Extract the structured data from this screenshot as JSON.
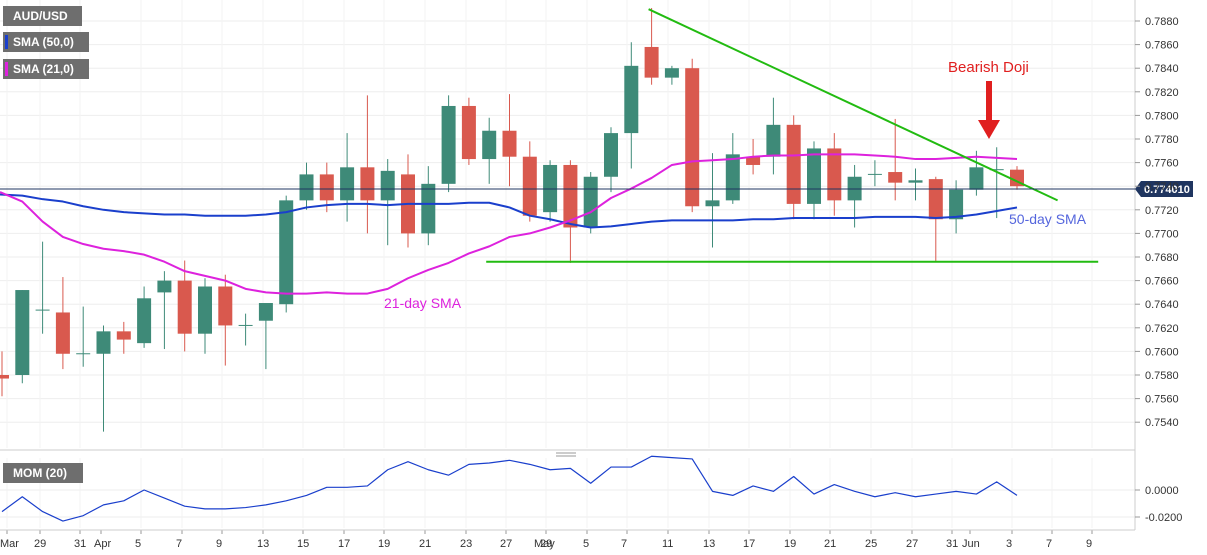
{
  "legends": {
    "symbol": "AUD/USD",
    "sma50": "SMA (50,0)",
    "sma21": "SMA (21,0)",
    "mom": "MOM (20)"
  },
  "colors": {
    "bull": "#3e8a78",
    "bear": "#d9594e",
    "sma50": "#1a3fcc",
    "sma21": "#dd22dd",
    "trend": "#22bb11",
    "arrow": "#e01f1f",
    "mom": "#1a3fcc"
  },
  "annotations": {
    "bearish_doji": "Bearish Doji",
    "sma50_label": "50-day SMA",
    "sma21_label": "21-day SMA"
  },
  "current_price": "0.774010",
  "chart_data": [
    {
      "type": "candlestick",
      "title": "AUD/USD",
      "x_tick_labels": [
        "Mar",
        "29",
        "31",
        "Apr",
        "5",
        "7",
        "9",
        "13",
        "15",
        "17",
        "19",
        "21",
        "23",
        "27",
        "29",
        "May",
        "5",
        "7",
        "11",
        "13",
        "17",
        "19",
        "21",
        "25",
        "27",
        "31",
        "Jun",
        "3",
        "7",
        "9"
      ],
      "y_ticks": [
        "0.7540",
        "0.7560",
        "0.7580",
        "0.7600",
        "0.7620",
        "0.7640",
        "0.7660",
        "0.7680",
        "0.7700",
        "0.7720",
        "0.7740",
        "0.7760",
        "0.7780",
        "0.7800",
        "0.7820",
        "0.7840",
        "0.7860",
        "0.7880"
      ],
      "ylim": [
        0.7524,
        0.7895
      ],
      "grid": true,
      "candles": [
        {
          "date": "Mar 26",
          "o": 0.758,
          "h": 0.76,
          "l": 0.7562,
          "c": 0.7577
        },
        {
          "date": "Mar 29",
          "o": 0.758,
          "h": 0.7652,
          "l": 0.7573,
          "c": 0.7652
        },
        {
          "date": "Mar 30",
          "o": 0.7635,
          "h": 0.7693,
          "l": 0.7615,
          "c": 0.7635
        },
        {
          "date": "Mar 31",
          "o": 0.7633,
          "h": 0.7663,
          "l": 0.7585,
          "c": 0.7598
        },
        {
          "date": "Apr 1",
          "o": 0.7598,
          "h": 0.7638,
          "l": 0.7587,
          "c": 0.7598
        },
        {
          "date": "Apr 2",
          "o": 0.7598,
          "h": 0.7622,
          "l": 0.7532,
          "c": 0.7617
        },
        {
          "date": "Apr 5",
          "o": 0.7617,
          "h": 0.7625,
          "l": 0.7598,
          "c": 0.761
        },
        {
          "date": "Apr 6",
          "o": 0.7607,
          "h": 0.7655,
          "l": 0.7603,
          "c": 0.7645
        },
        {
          "date": "Apr 7",
          "o": 0.765,
          "h": 0.7668,
          "l": 0.7602,
          "c": 0.766
        },
        {
          "date": "Apr 8",
          "o": 0.766,
          "h": 0.7677,
          "l": 0.76,
          "c": 0.7615
        },
        {
          "date": "Apr 9",
          "o": 0.7615,
          "h": 0.7662,
          "l": 0.7598,
          "c": 0.7655
        },
        {
          "date": "Apr 12",
          "o": 0.7655,
          "h": 0.7665,
          "l": 0.7588,
          "c": 0.7622
        },
        {
          "date": "Apr 13",
          "o": 0.7622,
          "h": 0.7632,
          "l": 0.7605,
          "c": 0.7622
        },
        {
          "date": "Apr 14",
          "o": 0.7626,
          "h": 0.764,
          "l": 0.7585,
          "c": 0.7641
        },
        {
          "date": "Apr 15",
          "o": 0.764,
          "h": 0.7732,
          "l": 0.7633,
          "c": 0.7728
        },
        {
          "date": "Apr 16",
          "o": 0.7728,
          "h": 0.776,
          "l": 0.772,
          "c": 0.775
        },
        {
          "date": "Apr 19",
          "o": 0.775,
          "h": 0.776,
          "l": 0.7718,
          "c": 0.7728
        },
        {
          "date": "Apr 20",
          "o": 0.7728,
          "h": 0.7785,
          "l": 0.771,
          "c": 0.7756
        },
        {
          "date": "Apr 21",
          "o": 0.7756,
          "h": 0.7817,
          "l": 0.77,
          "c": 0.7728
        },
        {
          "date": "Apr 22",
          "o": 0.7728,
          "h": 0.7763,
          "l": 0.769,
          "c": 0.7753
        },
        {
          "date": "Apr 23",
          "o": 0.775,
          "h": 0.7767,
          "l": 0.7688,
          "c": 0.77
        },
        {
          "date": "Apr 26",
          "o": 0.77,
          "h": 0.7757,
          "l": 0.769,
          "c": 0.7742
        },
        {
          "date": "Apr 27",
          "o": 0.7742,
          "h": 0.7817,
          "l": 0.7735,
          "c": 0.7808
        },
        {
          "date": "Apr 28",
          "o": 0.7808,
          "h": 0.7815,
          "l": 0.7758,
          "c": 0.7763
        },
        {
          "date": "Apr 29",
          "o": 0.7763,
          "h": 0.7798,
          "l": 0.7742,
          "c": 0.7787
        },
        {
          "date": "Apr 30",
          "o": 0.7787,
          "h": 0.7818,
          "l": 0.774,
          "c": 0.7765
        },
        {
          "date": "May 3",
          "o": 0.7765,
          "h": 0.7778,
          "l": 0.771,
          "c": 0.7715
        },
        {
          "date": "May 4",
          "o": 0.7718,
          "h": 0.7762,
          "l": 0.771,
          "c": 0.7758
        },
        {
          "date": "May 5",
          "o": 0.7758,
          "h": 0.7762,
          "l": 0.7675,
          "c": 0.7705
        },
        {
          "date": "May 6",
          "o": 0.7705,
          "h": 0.7752,
          "l": 0.77,
          "c": 0.7748
        },
        {
          "date": "May 7",
          "o": 0.7748,
          "h": 0.779,
          "l": 0.7735,
          "c": 0.7785
        },
        {
          "date": "May 10",
          "o": 0.7785,
          "h": 0.7862,
          "l": 0.7755,
          "c": 0.7842
        },
        {
          "date": "May 11",
          "o": 0.7858,
          "h": 0.7891,
          "l": 0.7826,
          "c": 0.7832
        },
        {
          "date": "May 12",
          "o": 0.7832,
          "h": 0.7842,
          "l": 0.7826,
          "c": 0.784
        },
        {
          "date": "May 13",
          "o": 0.784,
          "h": 0.7848,
          "l": 0.7718,
          "c": 0.7723
        },
        {
          "date": "May 14",
          "o": 0.7723,
          "h": 0.7768,
          "l": 0.7688,
          "c": 0.7728
        },
        {
          "date": "May 17",
          "o": 0.7728,
          "h": 0.7785,
          "l": 0.7725,
          "c": 0.7767
        },
        {
          "date": "May 18",
          "o": 0.7765,
          "h": 0.778,
          "l": 0.775,
          "c": 0.7758
        },
        {
          "date": "May 19",
          "o": 0.7765,
          "h": 0.7815,
          "l": 0.775,
          "c": 0.7792
        },
        {
          "date": "May 20",
          "o": 0.7792,
          "h": 0.78,
          "l": 0.7712,
          "c": 0.7725
        },
        {
          "date": "May 21",
          "o": 0.7725,
          "h": 0.7778,
          "l": 0.7712,
          "c": 0.7772
        },
        {
          "date": "May 24",
          "o": 0.7772,
          "h": 0.7785,
          "l": 0.7715,
          "c": 0.7728
        },
        {
          "date": "May 25",
          "o": 0.7728,
          "h": 0.7758,
          "l": 0.7705,
          "c": 0.7748
        },
        {
          "date": "May 26",
          "o": 0.775,
          "h": 0.7762,
          "l": 0.774,
          "c": 0.775
        },
        {
          "date": "May 27",
          "o": 0.7752,
          "h": 0.7797,
          "l": 0.7728,
          "c": 0.7743
        },
        {
          "date": "May 28",
          "o": 0.7743,
          "h": 0.7755,
          "l": 0.7728,
          "c": 0.7745
        },
        {
          "date": "May 31",
          "o": 0.7746,
          "h": 0.7748,
          "l": 0.7676,
          "c": 0.7712
        },
        {
          "date": "Jun 1",
          "o": 0.7712,
          "h": 0.7745,
          "l": 0.77,
          "c": 0.7737
        },
        {
          "date": "Jun 2",
          "o": 0.7737,
          "h": 0.777,
          "l": 0.7732,
          "c": 0.7756
        },
        {
          "date": "Jun 3",
          "o": 0.7754,
          "h": 0.7773,
          "l": 0.7713,
          "c": 0.7754
        },
        {
          "date": "Jun 4",
          "o": 0.7754,
          "h": 0.7757,
          "l": 0.7737,
          "c": 0.774
        }
      ],
      "series": [
        {
          "name": "SMA (50,0)",
          "values": [
            0.7733,
            0.7732,
            0.7729,
            0.7727,
            0.7723,
            0.772,
            0.7718,
            0.7717,
            0.7716,
            0.7716,
            0.7715,
            0.7715,
            0.7715,
            0.7716,
            0.7718,
            0.7722,
            0.7724,
            0.7725,
            0.7725,
            0.7724,
            0.7725,
            0.7725,
            0.7725,
            0.7726,
            0.7726,
            0.7722,
            0.7715,
            0.7712,
            0.7708,
            0.7705,
            0.7706,
            0.7708,
            0.771,
            0.7711,
            0.7711,
            0.7711,
            0.7711,
            0.7712,
            0.7712,
            0.7713,
            0.7713,
            0.7713,
            0.7713,
            0.7714,
            0.7714,
            0.7714,
            0.7713,
            0.7714,
            0.7716,
            0.7719,
            0.7722
          ]
        },
        {
          "name": "SMA (21,0)",
          "values": [
            0.7735,
            0.7727,
            0.771,
            0.7697,
            0.7691,
            0.7687,
            0.7685,
            0.7682,
            0.7676,
            0.7668,
            0.7664,
            0.766,
            0.7653,
            0.765,
            0.7649,
            0.7649,
            0.765,
            0.7649,
            0.7649,
            0.7653,
            0.7662,
            0.7669,
            0.7675,
            0.7683,
            0.7689,
            0.7697,
            0.77,
            0.7705,
            0.7711,
            0.7718,
            0.773,
            0.7738,
            0.7747,
            0.7758,
            0.7761,
            0.7762,
            0.7763,
            0.7765,
            0.7766,
            0.7766,
            0.7767,
            0.7767,
            0.7767,
            0.7766,
            0.7765,
            0.7763,
            0.7763,
            0.7764,
            0.7765,
            0.7764,
            0.7763
          ]
        }
      ],
      "trendlines": [
        {
          "name": "descending-resistance",
          "from": {
            "date": "May 11",
            "value": 0.789
          },
          "to": {
            "date": "Jun 7",
            "value": 0.7728
          }
        },
        {
          "name": "horizontal-support",
          "from": {
            "date": "Apr 29",
            "value": 0.7676
          },
          "to": {
            "date": "Jun 9",
            "value": 0.7676
          }
        }
      ]
    },
    {
      "type": "line",
      "title": "MOM (20)",
      "y_ticks": [
        "0.0000",
        "-0.0200"
      ],
      "series": [
        {
          "name": "MOM (20)",
          "values": [
            -0.016,
            -0.005,
            -0.016,
            -0.023,
            -0.019,
            -0.011,
            -0.008,
            0.0,
            -0.006,
            -0.012,
            -0.014,
            -0.014,
            -0.013,
            -0.011,
            -0.008,
            -0.004,
            0.002,
            0.002,
            0.003,
            0.015,
            0.021,
            0.015,
            0.011,
            0.019,
            0.02,
            0.022,
            0.019,
            0.015,
            0.016,
            0.005,
            0.017,
            0.017,
            0.025,
            0.024,
            0.023,
            -0.001,
            -0.004,
            0.003,
            -0.001,
            0.01,
            -0.003,
            0.004,
            -0.001,
            -0.005,
            -0.002,
            -0.005,
            -0.003,
            -0.001,
            -0.003,
            0.006,
            -0.004
          ]
        }
      ]
    }
  ]
}
